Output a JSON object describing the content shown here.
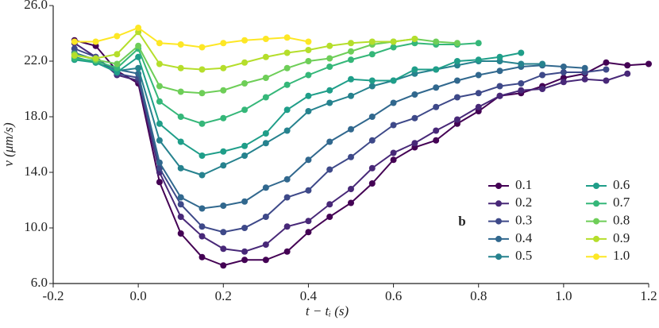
{
  "chart_data": {
    "type": "line",
    "xlabel": "t − tᵢ (s)",
    "ylabel": "v (μm/s)",
    "legend_title": "b",
    "x": [
      -0.15,
      -0.1,
      -0.05,
      0,
      0.05,
      0.1,
      0.15,
      0.2,
      0.25,
      0.3,
      0.35,
      0.4,
      0.45,
      0.5,
      0.55,
      0.6,
      0.65,
      0.7,
      0.75,
      0.8,
      0.85,
      0.9,
      0.95,
      1.0,
      1.05,
      1.1,
      1.15,
      1.2
    ],
    "xlim": [
      -0.2,
      1.2
    ],
    "xticks": [
      -0.2,
      {
        "value": 0,
        "label": "0.0"
      },
      0.2,
      0.4,
      0.6,
      0.8,
      {
        "value": 1,
        "label": "1.0"
      },
      1.2
    ],
    "ylim": [
      6,
      26
    ],
    "yticks": [
      {
        "value": 6,
        "label": "6.0"
      },
      {
        "value": 10,
        "label": "10.0"
      },
      {
        "value": 14,
        "label": "14.0"
      },
      {
        "value": 18,
        "label": "18.0"
      },
      {
        "value": 22,
        "label": "22.0"
      },
      {
        "value": 26,
        "label": "26.0"
      }
    ],
    "series": [
      {
        "name": "0.1",
        "color": "#440154",
        "values": [
          23.5,
          23.1,
          21.3,
          20.4,
          13.3,
          9.6,
          7.9,
          7.3,
          7.7,
          7.7,
          8.3,
          9.7,
          10.8,
          11.8,
          13.2,
          14.9,
          15.8,
          16.3,
          17.5,
          18.4,
          19.5,
          19.7,
          20.2,
          20.8,
          21.1,
          21.9,
          21.7,
          21.8
        ]
      },
      {
        "name": "0.2",
        "color": "#482878",
        "values": [
          23.3,
          22.3,
          21.0,
          20.6,
          14.0,
          10.8,
          9.4,
          8.5,
          8.3,
          8.8,
          10.1,
          10.5,
          11.7,
          12.8,
          14.3,
          15.4,
          16.1,
          17.0,
          17.8,
          18.7,
          19.5,
          19.9,
          20.0,
          20.5,
          20.7,
          20.6,
          21.1,
          null
        ]
      },
      {
        "name": "0.3",
        "color": "#3e4989",
        "values": [
          22.9,
          22.3,
          21.1,
          20.8,
          14.3,
          11.7,
          10.1,
          9.7,
          10.0,
          10.8,
          12.2,
          12.7,
          14.2,
          15.1,
          16.3,
          17.4,
          17.9,
          18.7,
          19.4,
          19.7,
          20.2,
          20.4,
          21.0,
          21.2,
          21.2,
          21.4,
          null,
          null
        ]
      },
      {
        "name": "0.4",
        "color": "#31688e",
        "values": [
          22.6,
          22.1,
          21.4,
          21.1,
          14.7,
          12.2,
          11.4,
          11.6,
          11.9,
          12.9,
          13.5,
          14.9,
          16.2,
          17.1,
          18.0,
          19.0,
          19.6,
          20.1,
          20.6,
          21.0,
          21.3,
          21.6,
          21.7,
          21.6,
          21.5,
          null,
          null,
          null
        ]
      },
      {
        "name": "0.5",
        "color": "#26828e",
        "values": [
          22.3,
          21.9,
          21.3,
          21.5,
          16.3,
          14.3,
          13.8,
          14.5,
          15.2,
          16.1,
          17.0,
          18.4,
          19.0,
          19.5,
          20.2,
          20.6,
          21.1,
          21.4,
          21.7,
          22.0,
          22.0,
          21.8,
          21.8,
          null,
          null,
          null,
          null,
          null
        ]
      },
      {
        "name": "0.6",
        "color": "#1f9e89",
        "values": [
          22.1,
          21.9,
          21.2,
          22.3,
          17.5,
          16.2,
          15.2,
          15.5,
          15.9,
          16.8,
          18.5,
          19.5,
          19.9,
          20.7,
          20.6,
          20.6,
          21.4,
          21.4,
          22.0,
          22.1,
          22.3,
          22.6,
          null,
          null,
          null,
          null,
          null,
          null
        ]
      },
      {
        "name": "0.7",
        "color": "#35b779",
        "values": [
          22.2,
          22.0,
          21.5,
          22.9,
          19.1,
          18.0,
          17.5,
          17.9,
          18.5,
          19.4,
          20.3,
          21.0,
          21.6,
          22.1,
          22.5,
          23.0,
          23.3,
          23.2,
          23.2,
          23.3,
          null,
          null,
          null,
          null,
          null,
          null,
          null,
          null
        ]
      },
      {
        "name": "0.8",
        "color": "#6ece58",
        "values": [
          22.5,
          22.1,
          21.8,
          23.1,
          20.2,
          19.8,
          19.7,
          19.9,
          20.4,
          20.8,
          21.5,
          22.0,
          22.2,
          22.7,
          23.2,
          23.4,
          23.6,
          23.4,
          23.3,
          null,
          null,
          null,
          null,
          null,
          null,
          null,
          null,
          null
        ]
      },
      {
        "name": "0.9",
        "color": "#b5de2b",
        "values": [
          22.4,
          22.2,
          22.5,
          24.1,
          21.8,
          21.5,
          21.4,
          21.5,
          21.9,
          22.3,
          22.6,
          22.8,
          23.1,
          23.3,
          23.4,
          23.4,
          23.6,
          null,
          null,
          null,
          null,
          null,
          null,
          null,
          null,
          null,
          null,
          null
        ]
      },
      {
        "name": "1.0",
        "color": "#fde725",
        "values": [
          23.4,
          23.4,
          23.8,
          24.4,
          23.3,
          23.2,
          23.0,
          23.3,
          23.5,
          23.6,
          23.7,
          23.4,
          null,
          null,
          null,
          null,
          null,
          null,
          null,
          null,
          null,
          null,
          null,
          null,
          null,
          null,
          null,
          null
        ]
      }
    ]
  }
}
